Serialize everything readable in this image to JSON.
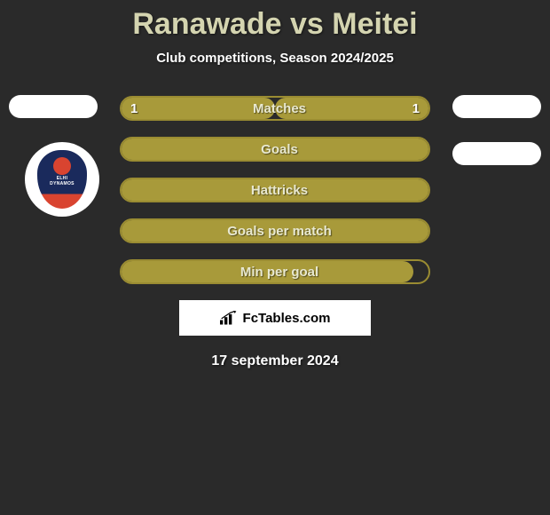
{
  "title": "Ranawade vs Meitei",
  "subtitle": "Club competitions, Season 2024/2025",
  "date": "17 september 2024",
  "attribution": "FcTables.com",
  "colors": {
    "accent": "#a89a3a",
    "accent_border": "#9a8c32",
    "bg": "#2a2a2a",
    "title": "#d4d4b0",
    "text": "#ffffff"
  },
  "club_logo": {
    "line1": "ELHI",
    "line2": "DYNAMOS"
  },
  "stats": [
    {
      "label": "Matches",
      "left_val": "1",
      "right_val": "1",
      "left_fill_pct": 50,
      "right_fill_pct": 50,
      "left_fill_color": "#a89a3a",
      "right_fill_color": "#a89a3a",
      "border_color": "#9a8c32"
    },
    {
      "label": "Goals",
      "left_val": "",
      "right_val": "",
      "left_fill_pct": 100,
      "right_fill_pct": 0,
      "left_fill_color": "#a89a3a",
      "right_fill_color": "#a89a3a",
      "border_color": "#9a8c32"
    },
    {
      "label": "Hattricks",
      "left_val": "",
      "right_val": "",
      "left_fill_pct": 100,
      "right_fill_pct": 0,
      "left_fill_color": "#a89a3a",
      "right_fill_color": "#a89a3a",
      "border_color": "#9a8c32"
    },
    {
      "label": "Goals per match",
      "left_val": "",
      "right_val": "",
      "left_fill_pct": 100,
      "right_fill_pct": 0,
      "left_fill_color": "#a89a3a",
      "right_fill_color": "#a89a3a",
      "border_color": "#9a8c32"
    },
    {
      "label": "Min per goal",
      "left_val": "",
      "right_val": "",
      "left_fill_pct": 95,
      "right_fill_pct": 0,
      "left_fill_color": "#a89a3a",
      "right_fill_color": "#a89a3a",
      "border_color": "#9a8c32"
    }
  ]
}
